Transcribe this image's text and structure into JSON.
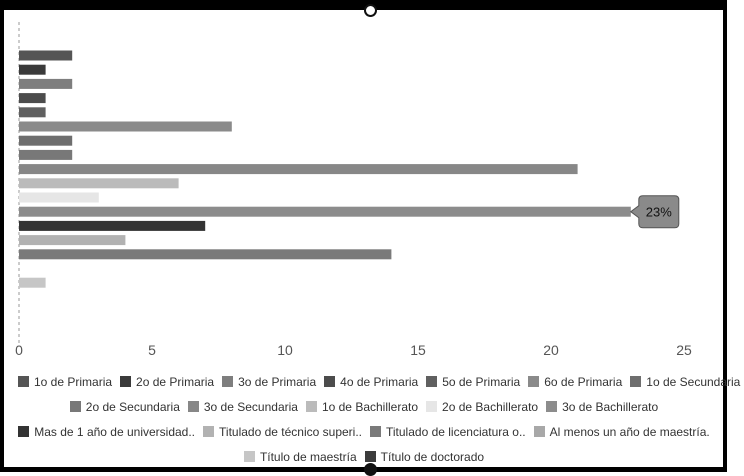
{
  "chart_data": {
    "type": "bar",
    "orientation": "horizontal",
    "xlim": [
      0,
      25
    ],
    "xticks": [
      0,
      5,
      10,
      15,
      20,
      25
    ],
    "grid": false,
    "legend_position": "bottom",
    "bars": [
      {
        "category": "1o de Primaria",
        "value": 2,
        "color": "#555555"
      },
      {
        "category": "2o de Primaria",
        "value": 1,
        "color": "#3a3a3a"
      },
      {
        "category": "3o de Primaria",
        "value": 2,
        "color": "#7e7e7e"
      },
      {
        "category": "4o de Primaria",
        "value": 1,
        "color": "#4c4c4c"
      },
      {
        "category": "5o de Primaria",
        "value": 1,
        "color": "#606060"
      },
      {
        "category": "6o de Primaria",
        "value": 8,
        "color": "#8a8a8a"
      },
      {
        "category": "1o de Secundaria",
        "value": 2,
        "color": "#6e6e6e"
      },
      {
        "category": "2o de Secundaria",
        "value": 2,
        "color": "#787878"
      },
      {
        "category": "3o de Secundaria",
        "value": 21,
        "color": "#878787"
      },
      {
        "category": "1o de Bachillerato",
        "value": 6,
        "color": "#bbbbbb"
      },
      {
        "category": "2o de Bachillerato",
        "value": 3,
        "color": "#e6e6e6"
      },
      {
        "category": "3o de Bachillerato",
        "value": 23,
        "color": "#8c8c8c"
      },
      {
        "category": "Mas de 1 año de universidad..",
        "value": 7,
        "color": "#333333"
      },
      {
        "category": "Titulado de técnico superi..",
        "value": 4,
        "color": "#b2b2b2"
      },
      {
        "category": "Titulado de licenciatura o..",
        "value": 14,
        "color": "#7a7a7a"
      },
      {
        "category": "Al menos un año de maestría.",
        "value": 0,
        "color": "#a8a8a8"
      },
      {
        "category": "Título de maestría",
        "value": 1,
        "color": "#c6c6c6"
      },
      {
        "category": "Título de doctorado",
        "value": 0,
        "color": "#3c3c3c"
      }
    ],
    "tooltip": {
      "category": "3o de Bachillerato",
      "text": "23%"
    }
  },
  "legend_rows": [
    [
      0,
      1,
      2,
      3,
      4,
      5,
      6
    ],
    [
      7,
      8,
      9,
      10,
      11
    ],
    [
      12,
      13,
      14,
      15
    ],
    [
      16,
      17
    ]
  ]
}
